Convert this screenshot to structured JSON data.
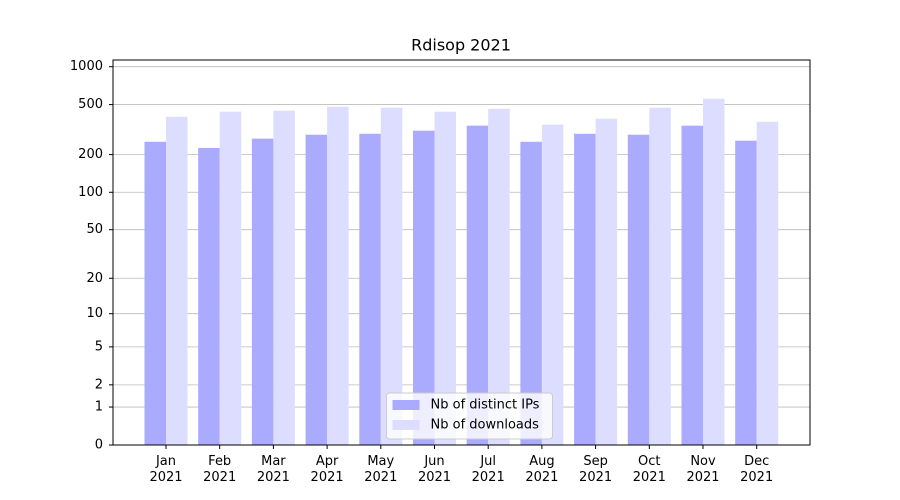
{
  "chart_data": {
    "type": "bar",
    "title": "Rdisop 2021",
    "scale": "log1p",
    "grid": true,
    "legend": "lower center",
    "categories": [
      "Jan\n2021",
      "Feb\n2021",
      "Mar\n2021",
      "Apr\n2021",
      "May\n2021",
      "Jun\n2021",
      "Jul\n2021",
      "Aug\n2021",
      "Sep\n2021",
      "Oct\n2021",
      "Nov\n2021",
      "Dec\n2021"
    ],
    "series": [
      {
        "name": "Nb of distinct IPs",
        "color": "#aaaaff",
        "values": [
          253,
          226,
          268,
          288,
          293,
          310,
          340,
          253,
          293,
          288,
          340,
          258
        ]
      },
      {
        "name": "Nb of downloads",
        "color": "#ddddff",
        "values": [
          400,
          439,
          447,
          481,
          472,
          439,
          463,
          346,
          386,
          472,
          556,
          365
        ]
      }
    ],
    "ylim": [
      0,
      1130
    ],
    "yticks": [
      0,
      1,
      2,
      5,
      10,
      20,
      50,
      100,
      200,
      500,
      1000
    ]
  }
}
